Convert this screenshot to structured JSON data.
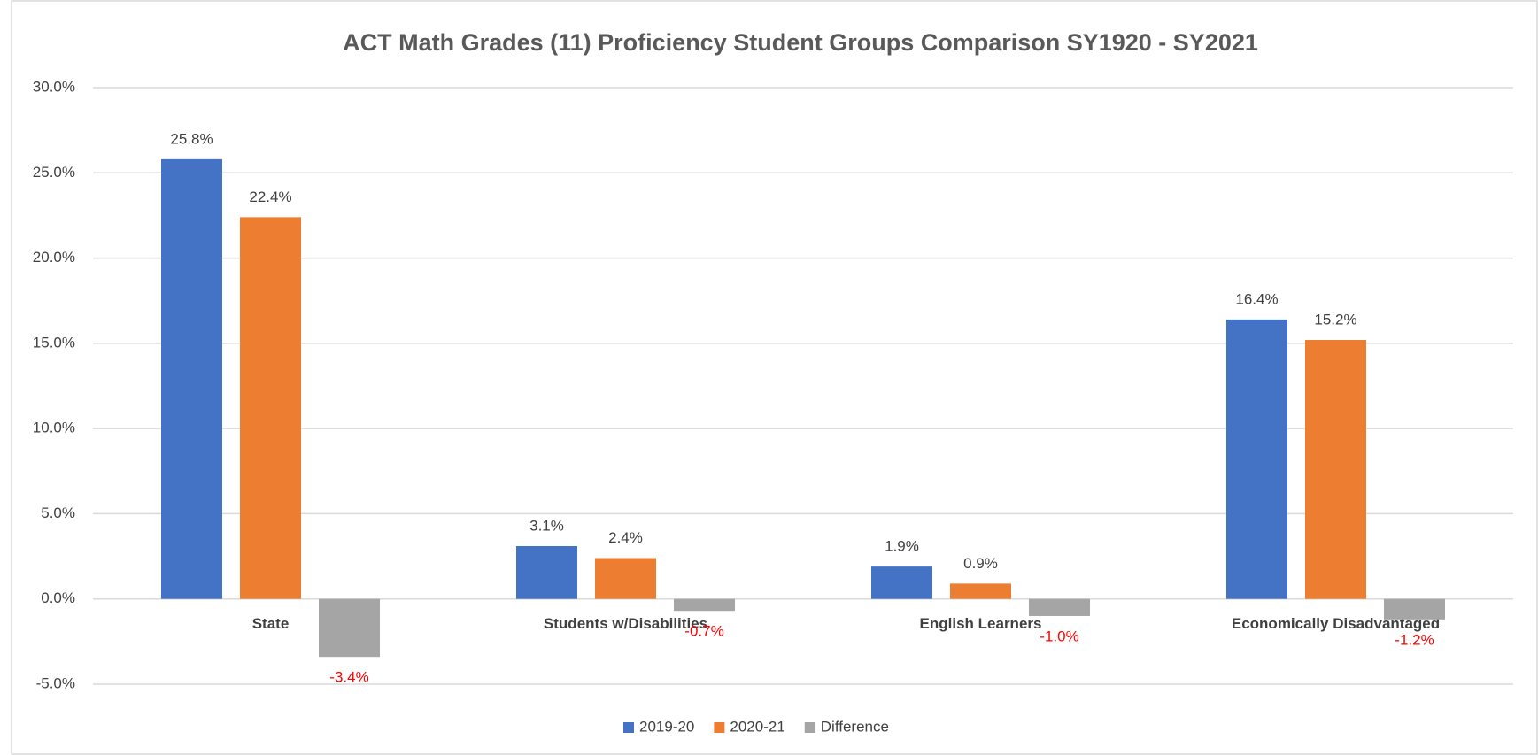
{
  "chart_data": {
    "type": "bar",
    "title": "ACT Math Grades (11) Proficiency Student Groups Comparison SY1920 - SY2021",
    "categories": [
      "State",
      "Students w/Disabilities",
      "English Learners",
      "Economically Disadvantaged"
    ],
    "series": [
      {
        "name": "2019-20",
        "color": "#4472c4",
        "values": [
          25.8,
          3.1,
          1.9,
          16.4
        ],
        "value_labels": [
          "25.8%",
          "3.1%",
          "1.9%",
          "16.4%"
        ]
      },
      {
        "name": "2020-21",
        "color": "#ed7d31",
        "values": [
          22.4,
          2.4,
          0.9,
          15.2
        ],
        "value_labels": [
          "22.4%",
          "2.4%",
          "0.9%",
          "15.2%"
        ]
      },
      {
        "name": "Difference",
        "color": "#a5a5a5",
        "label_color": "#ff0000",
        "values": [
          -3.4,
          -0.7,
          -1.0,
          -1.2
        ],
        "value_labels": [
          "-3.4%",
          "-0.7%",
          "-1.0%",
          "-1.2%"
        ]
      }
    ],
    "ylim": [
      -5,
      30
    ],
    "yticks": [
      {
        "value": -5,
        "label": "-5.0%"
      },
      {
        "value": 0,
        "label": "0.0%"
      },
      {
        "value": 5,
        "label": "5.0%"
      },
      {
        "value": 10,
        "label": "10.0%"
      },
      {
        "value": 15,
        "label": "15.0%"
      },
      {
        "value": 20,
        "label": "20.0%"
      },
      {
        "value": 25,
        "label": "25.0%"
      },
      {
        "value": 30,
        "label": "30.0%"
      }
    ],
    "grid": true,
    "legend": "bottom"
  }
}
